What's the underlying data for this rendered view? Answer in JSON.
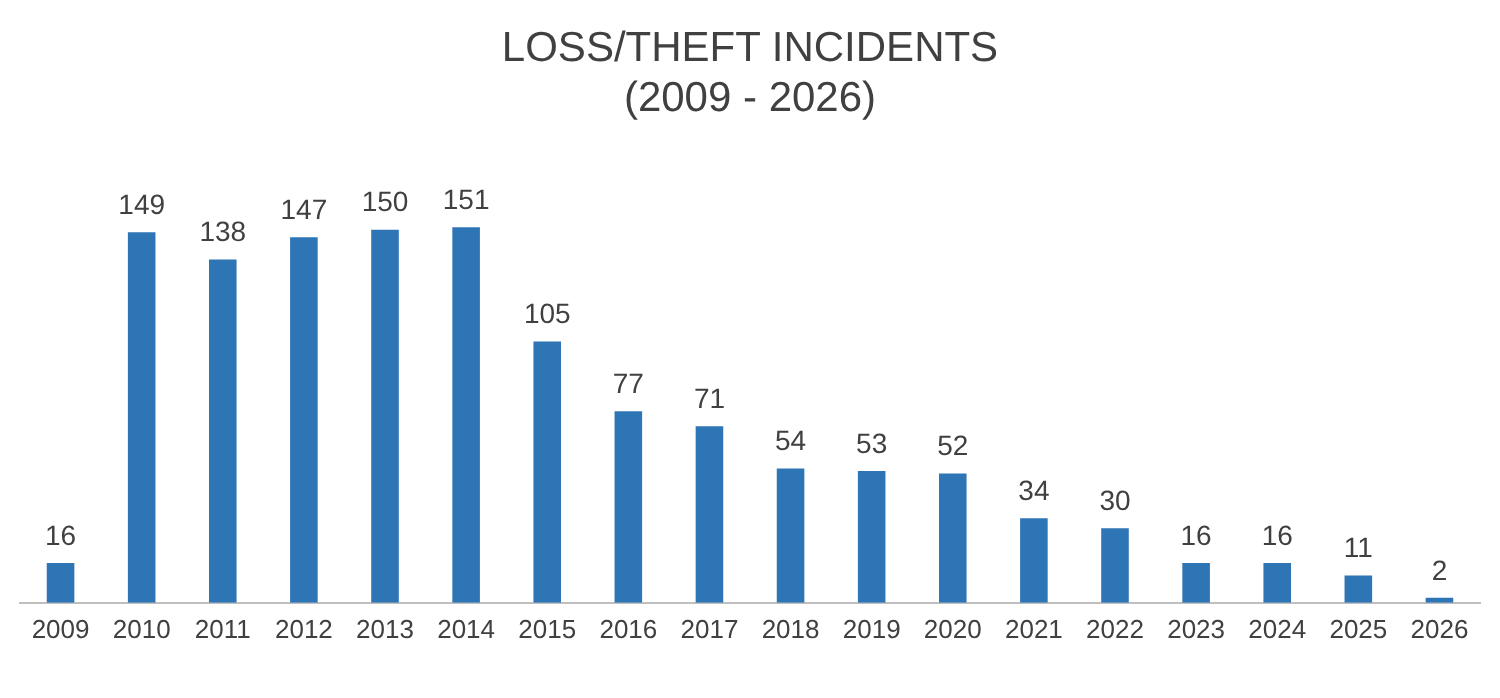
{
  "chart_data": {
    "type": "bar",
    "title": "LOSS/THEFT INCIDENTS\n(2009 - 2026)",
    "categories": [
      "2009",
      "2010",
      "2011",
      "2012",
      "2013",
      "2014",
      "2015",
      "2016",
      "2017",
      "2018",
      "2019",
      "2020",
      "2021",
      "2022",
      "2023",
      "2024",
      "2025",
      "2026"
    ],
    "values": [
      16,
      149,
      138,
      147,
      150,
      151,
      105,
      77,
      71,
      54,
      53,
      52,
      34,
      30,
      16,
      16,
      11,
      2
    ],
    "color": "#2e75b6",
    "data_labels": true,
    "tick_labels": "x",
    "grid": false,
    "legend": false
  }
}
